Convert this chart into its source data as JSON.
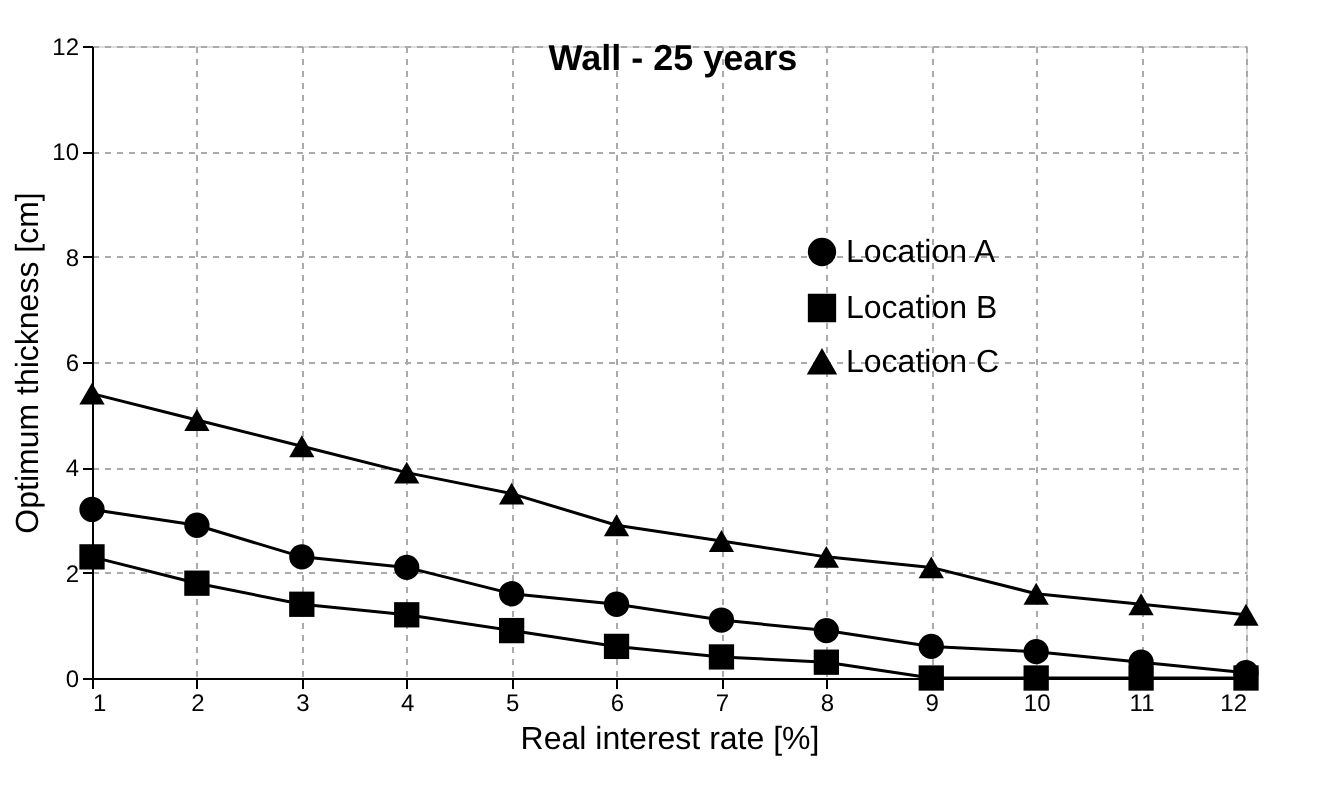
{
  "chart_data": {
    "type": "line",
    "title": "Wall - 25 years",
    "xlabel": "Real interest rate [%]",
    "ylabel": "Optimum thickness [cm]",
    "x": [
      1,
      2,
      3,
      4,
      5,
      6,
      7,
      8,
      9,
      10,
      11,
      12
    ],
    "series": [
      {
        "name": "Location A",
        "color": "#000000",
        "marker": "circle",
        "values": [
          3.2,
          2.9,
          2.3,
          2.1,
          1.6,
          1.4,
          1.1,
          0.9,
          0.6,
          0.5,
          0.3,
          0.1
        ]
      },
      {
        "name": "Location B",
        "color": "#000000",
        "marker": "square",
        "values": [
          2.3,
          1.8,
          1.4,
          1.2,
          0.9,
          0.6,
          0.4,
          0.3,
          0,
          0,
          0,
          0
        ]
      },
      {
        "name": "Location C",
        "color": "#000000",
        "marker": "triangle",
        "values": [
          5.4,
          4.9,
          4.4,
          3.9,
          3.5,
          2.9,
          2.6,
          2.3,
          2.1,
          1.6,
          1.4,
          1.2
        ]
      }
    ],
    "xlim": [
      1,
      12
    ],
    "xticks": [
      1,
      2,
      3,
      4,
      5,
      6,
      7,
      8,
      9,
      10,
      11,
      12
    ],
    "ylim": [
      0,
      12
    ],
    "yticks": [
      0,
      2,
      4,
      6,
      8,
      10,
      12
    ],
    "grid": true,
    "legend": "right",
    "line_style": "solid"
  }
}
